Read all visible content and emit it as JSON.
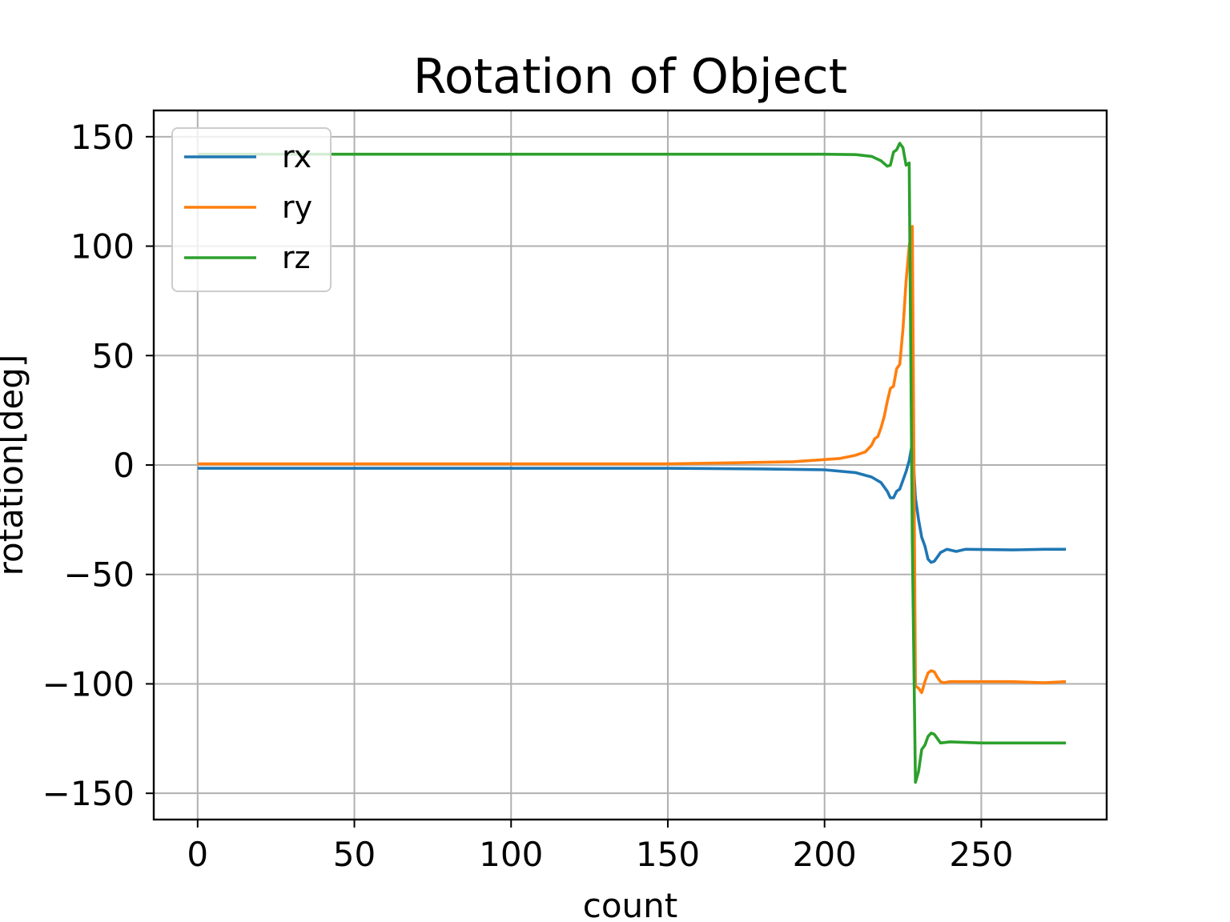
{
  "chart_data": {
    "type": "line",
    "title": "Rotation of Object",
    "xlabel": "count",
    "ylabel": "rotation[deg]",
    "xlim": [
      -14,
      290
    ],
    "ylim": [
      -162,
      162
    ],
    "xticks": [
      0,
      50,
      100,
      150,
      200,
      250
    ],
    "yticks": [
      150,
      100,
      50,
      0,
      -50,
      -100,
      -150
    ],
    "xtick_labels": [
      "0",
      "50",
      "100",
      "150",
      "200",
      "250"
    ],
    "ytick_labels": [
      "150",
      "100",
      "50",
      "0",
      "−50",
      "−100",
      "−150"
    ],
    "grid": true,
    "legend_position": "upper-left",
    "series": [
      {
        "name": "rx",
        "color": "#1f77b4",
        "points": [
          [
            0,
            -1.5
          ],
          [
            50,
            -1.5
          ],
          [
            100,
            -1.5
          ],
          [
            150,
            -1.5
          ],
          [
            180,
            -1.8
          ],
          [
            200,
            -2.2
          ],
          [
            210,
            -3.5
          ],
          [
            215,
            -5.5
          ],
          [
            218,
            -8
          ],
          [
            220,
            -12
          ],
          [
            221,
            -15
          ],
          [
            222,
            -15
          ],
          [
            223,
            -12
          ],
          [
            224,
            -11
          ],
          [
            225,
            -7
          ],
          [
            226,
            -3
          ],
          [
            227,
            2
          ],
          [
            228,
            10
          ],
          [
            229,
            -15
          ],
          [
            230,
            -25
          ],
          [
            231,
            -33
          ],
          [
            232,
            -37
          ],
          [
            233,
            -43
          ],
          [
            234,
            -44.5
          ],
          [
            235,
            -44
          ],
          [
            236,
            -42
          ],
          [
            237,
            -40
          ],
          [
            239,
            -38.5
          ],
          [
            242,
            -39.5
          ],
          [
            245,
            -38.5
          ],
          [
            260,
            -38.8
          ],
          [
            270,
            -38.5
          ],
          [
            277,
            -38.5
          ]
        ]
      },
      {
        "name": "ry",
        "color": "#ff7f0e",
        "points": [
          [
            0,
            0.5
          ],
          [
            50,
            0.5
          ],
          [
            100,
            0.5
          ],
          [
            150,
            0.5
          ],
          [
            170,
            1
          ],
          [
            190,
            1.5
          ],
          [
            200,
            2.5
          ],
          [
            205,
            3
          ],
          [
            210,
            4.5
          ],
          [
            213,
            6
          ],
          [
            215,
            9
          ],
          [
            216,
            12
          ],
          [
            217,
            13
          ],
          [
            218,
            17
          ],
          [
            219,
            22
          ],
          [
            220,
            29
          ],
          [
            221,
            35
          ],
          [
            222,
            36
          ],
          [
            223,
            44
          ],
          [
            224,
            46
          ],
          [
            225,
            62
          ],
          [
            226,
            84
          ],
          [
            227,
            100
          ],
          [
            228,
            109
          ],
          [
            229,
            -101
          ],
          [
            230,
            -102
          ],
          [
            231,
            -104
          ],
          [
            232,
            -99
          ],
          [
            233,
            -95
          ],
          [
            234,
            -94
          ],
          [
            235,
            -94.5
          ],
          [
            236,
            -97
          ],
          [
            237,
            -99
          ],
          [
            238,
            -99.5
          ],
          [
            240,
            -99
          ],
          [
            245,
            -99
          ],
          [
            260,
            -99
          ],
          [
            270,
            -99.5
          ],
          [
            277,
            -99
          ]
        ]
      },
      {
        "name": "rz",
        "color": "#2ca02c",
        "points": [
          [
            0,
            142
          ],
          [
            50,
            142
          ],
          [
            100,
            142
          ],
          [
            150,
            142
          ],
          [
            200,
            142
          ],
          [
            210,
            141.8
          ],
          [
            215,
            141
          ],
          [
            218,
            139
          ],
          [
            220,
            136.5
          ],
          [
            221,
            137
          ],
          [
            222,
            143
          ],
          [
            223,
            144
          ],
          [
            224,
            147
          ],
          [
            225,
            145
          ],
          [
            226,
            137
          ],
          [
            227,
            138
          ],
          [
            228,
            -36
          ],
          [
            229,
            -145
          ],
          [
            230,
            -140
          ],
          [
            231,
            -130
          ],
          [
            232,
            -128
          ],
          [
            233,
            -124
          ],
          [
            234,
            -122.5
          ],
          [
            235,
            -123
          ],
          [
            236,
            -125
          ],
          [
            237,
            -127
          ],
          [
            240,
            -126.5
          ],
          [
            250,
            -127
          ],
          [
            260,
            -127
          ],
          [
            270,
            -127
          ],
          [
            277,
            -127
          ]
        ]
      }
    ]
  }
}
